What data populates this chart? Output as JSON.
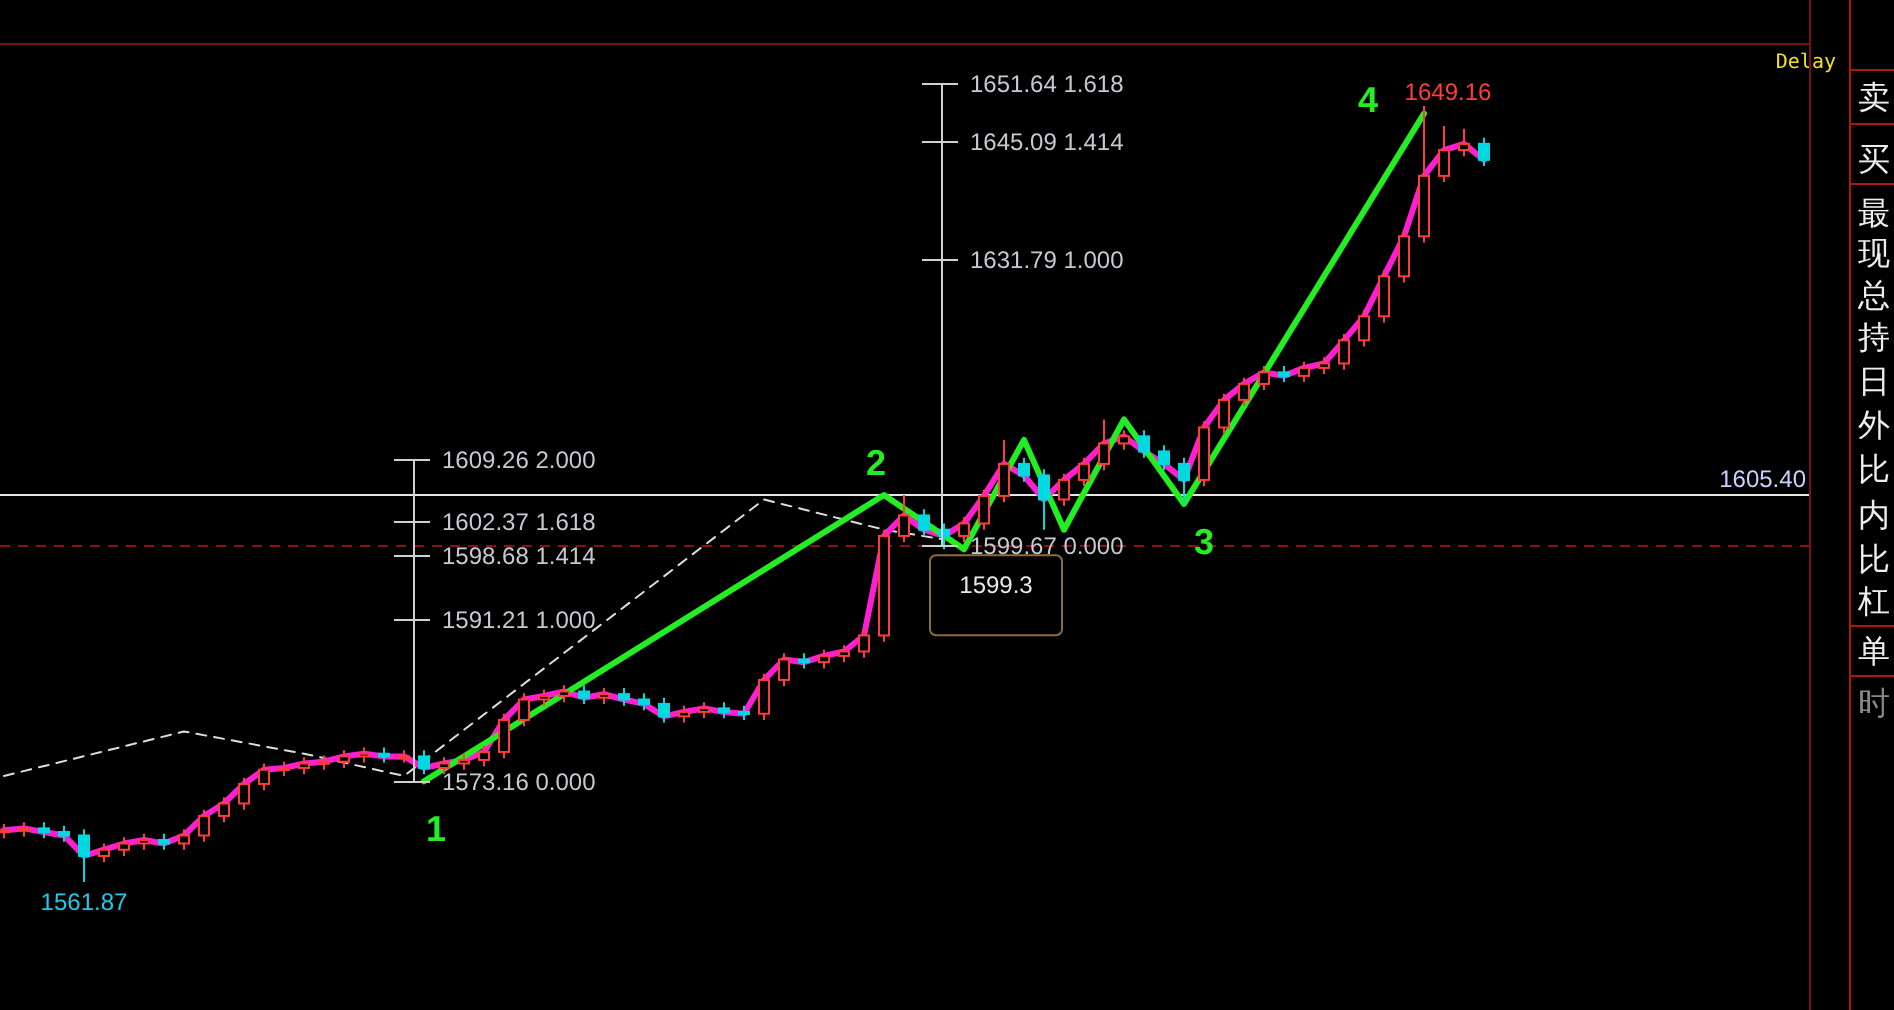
{
  "chart_data": {
    "type": "candlestick",
    "categories": [
      null,
      null,
      null,
      null,
      null,
      null,
      null,
      null,
      null,
      null,
      null,
      null,
      null,
      null,
      null,
      null,
      null,
      null,
      null,
      null,
      null,
      null,
      null,
      null,
      null,
      null,
      null,
      null,
      null,
      null,
      null,
      null,
      null,
      null,
      null,
      null,
      null,
      null,
      null,
      null,
      null,
      null,
      null,
      null,
      null,
      null,
      null,
      null,
      null,
      null,
      null,
      null,
      null,
      null,
      null,
      null,
      null,
      null,
      null,
      null,
      null,
      null,
      null,
      null,
      null,
      null,
      null,
      null,
      null,
      null,
      null,
      null,
      null,
      null,
      null
    ],
    "ohlc": [
      [
        1567.5,
        1568.4,
        1566.8,
        1567.7
      ],
      [
        1567.7,
        1568.6,
        1567.0,
        1567.9
      ],
      [
        1567.9,
        1568.6,
        1566.8,
        1567.5
      ],
      [
        1567.5,
        1568.2,
        1566.4,
        1567.1
      ],
      [
        1567.1,
        1567.8,
        1561.87,
        1564.8
      ],
      [
        1564.8,
        1566.2,
        1564.1,
        1565.5
      ],
      [
        1565.5,
        1566.9,
        1564.8,
        1566.2
      ],
      [
        1566.2,
        1567.3,
        1565.5,
        1566.6
      ],
      [
        1566.6,
        1567.3,
        1565.5,
        1566.2
      ],
      [
        1566.2,
        1567.8,
        1565.5,
        1567.1
      ],
      [
        1567.1,
        1570.0,
        1566.4,
        1569.3
      ],
      [
        1569.3,
        1571.4,
        1568.6,
        1570.7
      ],
      [
        1570.7,
        1573.6,
        1570.0,
        1572.9
      ],
      [
        1572.9,
        1575.2,
        1572.2,
        1574.5
      ],
      [
        1574.5,
        1575.4,
        1573.8,
        1574.7
      ],
      [
        1574.7,
        1575.9,
        1574.0,
        1575.2
      ],
      [
        1575.2,
        1576.1,
        1574.5,
        1575.4
      ],
      [
        1575.4,
        1576.7,
        1574.7,
        1576.0
      ],
      [
        1576.0,
        1577.0,
        1575.3,
        1576.3
      ],
      [
        1576.3,
        1577.0,
        1575.3,
        1576.0
      ],
      [
        1576.0,
        1576.7,
        1575.3,
        1576.0
      ],
      [
        1576.0,
        1576.7,
        1574.0,
        1574.7
      ],
      [
        1574.7,
        1575.9,
        1574.0,
        1575.2
      ],
      [
        1575.2,
        1576.3,
        1574.5,
        1575.6
      ],
      [
        1575.6,
        1577.2,
        1574.9,
        1576.5
      ],
      [
        1576.5,
        1580.8,
        1575.8,
        1580.1
      ],
      [
        1580.1,
        1583.1,
        1579.4,
        1582.4
      ],
      [
        1582.4,
        1583.5,
        1581.7,
        1582.8
      ],
      [
        1582.8,
        1584.0,
        1582.1,
        1583.3
      ],
      [
        1583.3,
        1584.0,
        1581.9,
        1582.6
      ],
      [
        1582.6,
        1583.7,
        1581.9,
        1583.0
      ],
      [
        1583.0,
        1583.7,
        1581.7,
        1582.4
      ],
      [
        1582.4,
        1583.1,
        1581.2,
        1581.9
      ],
      [
        1581.9,
        1582.6,
        1579.8,
        1580.5
      ],
      [
        1580.5,
        1581.7,
        1579.8,
        1581.0
      ],
      [
        1581.0,
        1582.1,
        1580.3,
        1581.4
      ],
      [
        1581.4,
        1582.1,
        1580.3,
        1581.0
      ],
      [
        1581.0,
        1581.7,
        1580.1,
        1580.8
      ],
      [
        1580.8,
        1585.3,
        1580.1,
        1584.6
      ],
      [
        1584.6,
        1587.6,
        1583.9,
        1586.9
      ],
      [
        1586.9,
        1587.6,
        1585.9,
        1586.6
      ],
      [
        1586.6,
        1588.0,
        1585.9,
        1587.3
      ],
      [
        1587.3,
        1588.5,
        1586.6,
        1587.8
      ],
      [
        1587.8,
        1590.3,
        1587.1,
        1589.6
      ],
      [
        1589.6,
        1601.5,
        1588.9,
        1600.8
      ],
      [
        1600.8,
        1605.4,
        1600.1,
        1603.1
      ],
      [
        1603.1,
        1603.8,
        1600.8,
        1601.5
      ],
      [
        1601.5,
        1602.2,
        1599.3,
        1600.8
      ],
      [
        1600.8,
        1602.9,
        1600.1,
        1602.2
      ],
      [
        1602.2,
        1606.0,
        1601.5,
        1605.3
      ],
      [
        1605.3,
        1611.6,
        1604.6,
        1608.9
      ],
      [
        1608.9,
        1609.6,
        1606.9,
        1607.6
      ],
      [
        1607.6,
        1608.3,
        1601.5,
        1604.9
      ],
      [
        1604.9,
        1607.8,
        1604.2,
        1607.1
      ],
      [
        1607.1,
        1609.6,
        1606.4,
        1608.9
      ],
      [
        1608.9,
        1613.9,
        1608.2,
        1611.2
      ],
      [
        1611.2,
        1612.7,
        1610.5,
        1612.0
      ],
      [
        1612.0,
        1612.7,
        1609.6,
        1610.3
      ],
      [
        1610.3,
        1611.0,
        1608.2,
        1608.9
      ],
      [
        1608.9,
        1609.6,
        1604.4,
        1607.1
      ],
      [
        1607.1,
        1613.7,
        1606.4,
        1613.0
      ],
      [
        1613.0,
        1616.8,
        1612.3,
        1616.1
      ],
      [
        1616.1,
        1618.6,
        1615.4,
        1617.9
      ],
      [
        1617.9,
        1619.9,
        1617.2,
        1619.2
      ],
      [
        1619.2,
        1619.9,
        1618.1,
        1618.8
      ],
      [
        1618.8,
        1620.4,
        1618.1,
        1619.7
      ],
      [
        1619.7,
        1620.9,
        1619.0,
        1620.2
      ],
      [
        1620.2,
        1623.5,
        1619.5,
        1622.8
      ],
      [
        1622.8,
        1626.2,
        1622.1,
        1625.5
      ],
      [
        1625.5,
        1630.7,
        1624.8,
        1630.0
      ],
      [
        1630.0,
        1635.2,
        1629.3,
        1634.5
      ],
      [
        1634.5,
        1649.16,
        1633.8,
        1641.3
      ],
      [
        1641.3,
        1646.9,
        1640.6,
        1644.2
      ],
      [
        1644.2,
        1646.6,
        1643.5,
        1644.9
      ],
      [
        1644.9,
        1645.6,
        1642.4,
        1643.1
      ]
    ],
    "colors": [
      "#ff3c3c",
      "#ff3c3c",
      "#00d9e0",
      "#00d9e0",
      "#00d9e0",
      "#ff3c3c",
      "#ff3c3c",
      "#ff3c3c",
      "#00d9e0",
      "#ff3c3c",
      "#ff3c3c",
      "#ff3c3c",
      "#ff3c3c",
      "#ff3c3c",
      "#ff3c3c",
      "#ff3c3c",
      "#ff3c3c",
      "#ff3c3c",
      "#ff3c3c",
      "#00d9e0",
      "#ff3c3c",
      "#00d9e0",
      "#ff3c3c",
      "#ff3c3c",
      "#ff3c3c",
      "#ff3c3c",
      "#ff3c3c",
      "#ff3c3c",
      "#ff3c3c",
      "#00d9e0",
      "#ff3c3c",
      "#00d9e0",
      "#00d9e0",
      "#00d9e0",
      "#ff3c3c",
      "#ff3c3c",
      "#00d9e0",
      "#00d9e0",
      "#ff3c3c",
      "#ff3c3c",
      "#00d9e0",
      "#ff3c3c",
      "#ff3c3c",
      "#ff3c3c",
      "#ff3c3c",
      "#ff3c3c",
      "#00d9e0",
      "#00d9e0",
      "#ff3c3c",
      "#ff3c3c",
      "#ff3c3c",
      "#00d9e0",
      "#00d9e0",
      "#ff3c3c",
      "#ff3c3c",
      "#ff3c3c",
      "#ff3c3c",
      "#00d9e0",
      "#00d9e0",
      "#00d9e0",
      "#ff3c3c",
      "#ff3c3c",
      "#ff3c3c",
      "#ff3c3c",
      "#00d9e0",
      "#ff3c3c",
      "#ff3c3c",
      "#ff3c3c",
      "#ff3c3c",
      "#ff3c3c",
      "#ff3c3c",
      "#ff3c3c",
      "#ff3c3c",
      "#ff3c3c",
      "#00d9e0"
    ],
    "series": [
      {
        "type": "line",
        "color": "#ff1fd2",
        "values": [
          1567.7,
          1567.9,
          1567.5,
          1567.1,
          1564.8,
          1565.5,
          1566.2,
          1566.6,
          1566.2,
          1567.1,
          1569.3,
          1570.7,
          1572.9,
          1574.5,
          1574.7,
          1575.2,
          1575.4,
          1576.0,
          1576.3,
          1576.0,
          1576.0,
          1574.7,
          1575.2,
          1575.6,
          1576.5,
          1580.1,
          1582.4,
          1582.8,
          1583.3,
          1582.6,
          1583.0,
          1582.4,
          1581.9,
          1580.5,
          1581.0,
          1581.4,
          1581.0,
          1580.8,
          1584.6,
          1586.9,
          1586.6,
          1587.3,
          1587.8,
          1589.6,
          1600.8,
          1603.1,
          1601.5,
          1600.8,
          1602.2,
          1605.3,
          1608.9,
          1607.6,
          1604.9,
          1607.1,
          1608.9,
          1611.2,
          1612.0,
          1610.3,
          1608.9,
          1607.1,
          1613.0,
          1616.1,
          1617.9,
          1619.2,
          1618.8,
          1619.7,
          1620.2,
          1622.8,
          1625.5,
          1630.0,
          1634.5,
          1641.3,
          1644.2,
          1644.9,
          1643.1
        ]
      },
      {
        "type": "line",
        "color": "#22ee22",
        "values": [
          null,
          null,
          null,
          null,
          null,
          null,
          null,
          null,
          null,
          null,
          null,
          null,
          null,
          null,
          null,
          null,
          null,
          null,
          null,
          null,
          null,
          1573.2,
          null,
          null,
          null,
          null,
          null,
          null,
          null,
          null,
          null,
          null,
          null,
          null,
          null,
          null,
          null,
          null,
          null,
          null,
          null,
          null,
          null,
          null,
          1605.4,
          null,
          null,
          null,
          1599.3,
          null,
          null,
          1611.6,
          null,
          1601.5,
          null,
          null,
          1613.9,
          null,
          null,
          1604.4,
          null,
          null,
          null,
          null,
          null,
          null,
          null,
          null,
          null,
          null,
          null,
          1648.3,
          null,
          null,
          null
        ]
      },
      {
        "type": "line",
        "color": "#dddddd",
        "line_style": "dashed",
        "values": [
          1573.8,
          null,
          null,
          null,
          null,
          null,
          null,
          null,
          null,
          1578.8,
          null,
          null,
          null,
          null,
          null,
          1576.3,
          null,
          null,
          null,
          null,
          1573.8,
          null,
          null,
          null,
          null,
          null,
          null,
          null,
          null,
          null,
          null,
          null,
          null,
          null,
          null,
          null,
          null,
          null,
          1604.9,
          null,
          null,
          null,
          null,
          null,
          1601.5,
          null,
          null,
          1600.4,
          null,
          null,
          null,
          null,
          null,
          null,
          null,
          null,
          null,
          null,
          null,
          null,
          null,
          null,
          null,
          null,
          null,
          null,
          null,
          null,
          null,
          null,
          null,
          null,
          null,
          null,
          null
        ]
      }
    ],
    "ref_lines": [
      {
        "axis": "y",
        "value": 1605.4,
        "label": "1605.40",
        "color": "#e6e6e6"
      },
      {
        "axis": "y",
        "value": 1599.67,
        "color": "#8b1010",
        "line_style": "dashed"
      }
    ],
    "annotations": [
      {
        "text": "1",
        "y": 1573.2
      },
      {
        "text": "2",
        "y": 1605.4
      },
      {
        "text": "3",
        "y": 1604.4
      },
      "4",
      {
        "text": "1561.87",
        "y": 1561.87
      },
      "1649.16",
      "1609.26 2.000",
      "1602.37 1.618",
      "1598.68 1.414",
      "1591.21 1.000",
      "1573.16 0.000",
      "1651.64 1.618",
      "1645.09 1.414",
      "1631.79 1.000",
      "1599.67 0.000",
      {
        "text": "1599.3",
        "y": 1599.3
      },
      "Delay",
      "卖",
      "买",
      "最",
      "现",
      "总",
      "持",
      "日",
      "外",
      "比",
      "内",
      "比",
      "杠",
      "单",
      "时"
    ]
  }
}
